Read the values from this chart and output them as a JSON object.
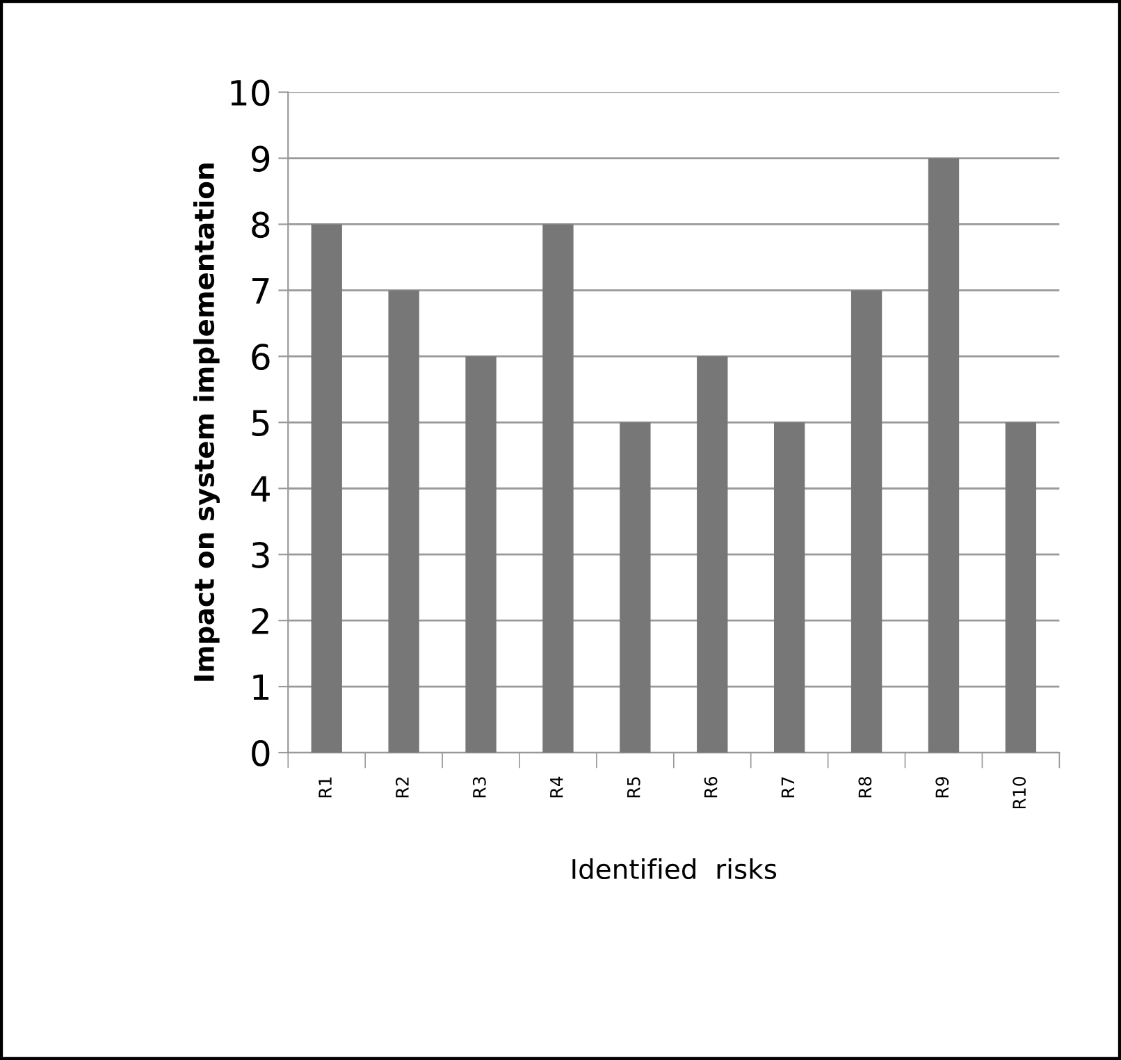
{
  "chart_data": {
    "type": "bar",
    "xlabel": "Identified  risks",
    "ylabel": "Impact on system implementation",
    "categories": [
      "R1",
      "R2",
      "R3",
      "R4",
      "R5",
      "R6",
      "R7",
      "R8",
      "R9",
      "R10"
    ],
    "values": [
      8,
      7,
      6,
      8,
      5,
      6,
      5,
      7,
      9,
      5
    ],
    "color": "#777777",
    "ylim": [
      0,
      10
    ],
    "yticks": [
      0,
      1,
      2,
      3,
      4,
      5,
      6,
      7,
      8,
      9,
      10
    ],
    "grid": "y",
    "legend": false
  }
}
